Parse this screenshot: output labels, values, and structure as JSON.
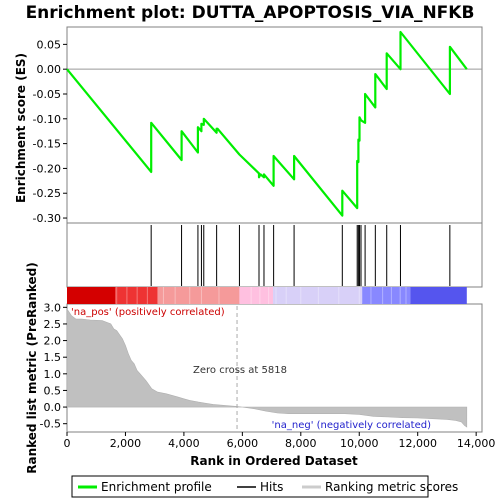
{
  "chart_data": {
    "type": "line",
    "title": "Enrichment plot: DUTTA_APOPTOSIS_VIA_NFKB",
    "top_panel": {
      "ylabel": "Enrichment score (ES)",
      "ylim": [
        -0.31,
        0.085
      ],
      "yticks": [
        "0.05",
        "0.00",
        "-0.05",
        "-0.10",
        "-0.15",
        "-0.20",
        "-0.25",
        "-0.30"
      ],
      "ytick_values": [
        0.05,
        0.0,
        -0.05,
        -0.1,
        -0.15,
        -0.2,
        -0.25,
        -0.3
      ],
      "series": [
        {
          "name": "Enrichment profile",
          "color": "#00ee00",
          "x": [
            0,
            2880,
            2880,
            3920,
            3920,
            4480,
            4480,
            4600,
            4600,
            4680,
            4680,
            5120,
            5120,
            5150,
            5150,
            5900,
            5900,
            6570,
            6570,
            6620,
            6620,
            6740,
            6740,
            7070,
            7070,
            7770,
            7770,
            9420,
            9420,
            9930,
            9930,
            9970,
            9970,
            10010,
            10010,
            10060,
            10060,
            10200,
            10200,
            10550,
            10550,
            10940,
            10940,
            11410,
            11410,
            13100,
            13100,
            13680
          ],
          "y": [
            0.0,
            -0.207,
            -0.108,
            -0.183,
            -0.125,
            -0.168,
            -0.117,
            -0.125,
            -0.11,
            -0.112,
            -0.1,
            -0.128,
            -0.12,
            -0.122,
            -0.12,
            -0.172,
            -0.172,
            -0.21,
            -0.218,
            -0.212,
            -0.212,
            -0.218,
            -0.212,
            -0.235,
            -0.175,
            -0.222,
            -0.175,
            -0.295,
            -0.245,
            -0.28,
            -0.185,
            -0.187,
            -0.142,
            -0.144,
            -0.097,
            -0.103,
            -0.103,
            -0.108,
            -0.05,
            -0.077,
            -0.01,
            -0.04,
            0.032,
            0.0,
            0.075,
            -0.05,
            0.045,
            0.0
          ]
        }
      ]
    },
    "hits": [
      2880,
      3920,
      4480,
      4600,
      4680,
      5120,
      5900,
      6570,
      6740,
      7070,
      7770,
      9420,
      9930,
      9970,
      10010,
      10060,
      10200,
      10550,
      10940,
      11410,
      13100
    ],
    "bottom_panel": {
      "ylabel": "Ranked list metric (PreRanked)",
      "xlabel": "Rank in Ordered Dataset",
      "xlim": [
        0,
        14200
      ],
      "xticks": [
        "0",
        "2,000",
        "4,000",
        "6,000",
        "8,000",
        "10,000",
        "12,000",
        "14,000"
      ],
      "xtick_values": [
        0,
        2000,
        4000,
        6000,
        8000,
        10000,
        12000,
        14000
      ],
      "ylim": [
        -0.75,
        3.1
      ],
      "yticks": [
        "3.0",
        "2.5",
        "2.0",
        "1.5",
        "1.0",
        "0.5",
        "0.0",
        "-0.5"
      ],
      "ytick_values": [
        3.0,
        2.5,
        2.0,
        1.5,
        1.0,
        0.5,
        0.0,
        -0.5
      ],
      "metric_x": [
        0,
        150,
        300,
        500,
        800,
        1200,
        1500,
        1600,
        1700,
        1900,
        2000,
        2100,
        2200,
        2300,
        2400,
        2500,
        2700,
        2900,
        3100,
        3400,
        3800,
        4000,
        4200,
        4500,
        4700,
        5000,
        5500,
        5800,
        6000,
        6400,
        6800,
        7200,
        7600,
        8000,
        8500,
        9000,
        9500,
        10000,
        10500,
        11000,
        11500,
        12000,
        12500,
        13000,
        13300,
        13500,
        13600,
        13680
      ],
      "metric_y": [
        2.95,
        2.75,
        2.65,
        2.65,
        2.62,
        2.6,
        2.5,
        2.35,
        2.3,
        2.05,
        1.85,
        1.6,
        1.4,
        1.3,
        1.1,
        1.0,
        0.8,
        0.55,
        0.45,
        0.4,
        0.3,
        0.25,
        0.2,
        0.15,
        0.12,
        0.08,
        0.04,
        0.02,
        0.0,
        -0.05,
        -0.12,
        -0.18,
        -0.2,
        -0.2,
        -0.2,
        -0.2,
        -0.2,
        -0.22,
        -0.28,
        -0.3,
        -0.32,
        -0.33,
        -0.35,
        -0.37,
        -0.4,
        -0.45,
        -0.55,
        -0.6
      ],
      "zero_cross_label": "Zero cross at 5818",
      "zero_cross_x": 5818,
      "pos_label": "'na_pos' (positively correlated)",
      "neg_label": "'na_neg' (negatively correlated)"
    },
    "heatbar": {
      "colors": [
        "#d40000",
        "#ee3333",
        "#f59a9a",
        "#ffc0e0",
        "#d8d0f8",
        "#8888ff",
        "#5555ee",
        "#1010d0"
      ],
      "stops": [
        0,
        1650,
        3100,
        5900,
        7050,
        10100,
        11750,
        13680
      ]
    },
    "legend": {
      "items": [
        "Enrichment profile",
        "Hits",
        "Ranking metric scores"
      ],
      "colors": [
        "#00ee00",
        "#000000",
        "#cccccc"
      ]
    }
  }
}
